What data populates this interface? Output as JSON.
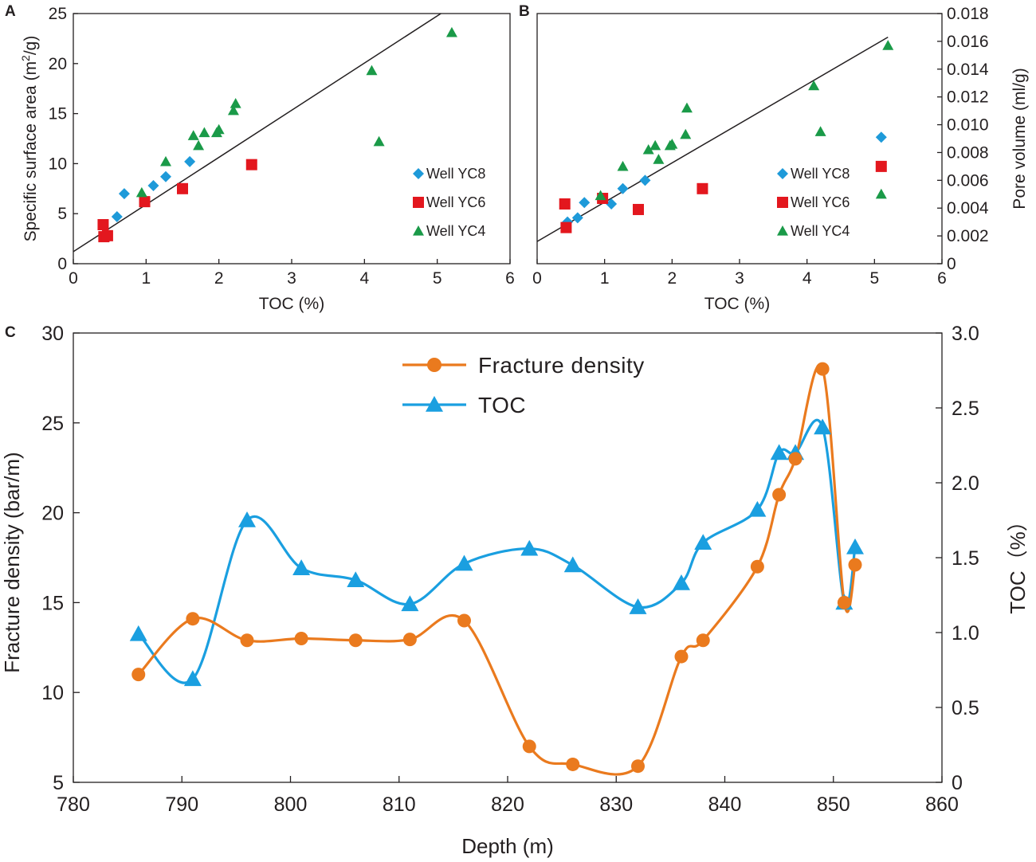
{
  "chart_data": [
    {
      "panel": "A",
      "type": "scatter",
      "xlabel": "TOC (%)",
      "ylabel_main": "Specific surface area (m",
      "ylabel_sup": "2",
      "ylabel_tail": "/g)",
      "xlim": [
        0,
        6
      ],
      "ylim": [
        0,
        25
      ],
      "xticks": [
        "0",
        "1",
        "2",
        "3",
        "4",
        "5",
        "6"
      ],
      "yticks": [
        "0",
        "5",
        "10",
        "15",
        "20",
        "25"
      ],
      "y_axis_side": "left",
      "legend_position": "right",
      "trendline": {
        "from": [
          0,
          1.2
        ],
        "to": [
          5.05,
          25
        ]
      },
      "series": [
        {
          "name": "Well YC8",
          "marker": "diamond",
          "color": "#1e9ad9",
          "x": [
            0.6,
            0.7,
            1.1,
            1.27,
            1.6
          ],
          "y": [
            4.7,
            7.0,
            7.8,
            8.7,
            10.2
          ]
        },
        {
          "name": "Well YC6",
          "marker": "square",
          "color": "#e3171e",
          "x": [
            0.41,
            0.42,
            0.47,
            0.98,
            1.5,
            2.45
          ],
          "y": [
            3.9,
            2.7,
            2.8,
            6.2,
            7.5,
            9.9
          ]
        },
        {
          "name": "Well YC4",
          "marker": "triangle",
          "color": "#1a9a48",
          "x": [
            0.94,
            1.27,
            1.65,
            1.72,
            1.8,
            1.97,
            2.0,
            2.2,
            2.23,
            4.1,
            4.2,
            5.2
          ],
          "y": [
            7.1,
            10.2,
            12.8,
            11.8,
            13.1,
            13.1,
            13.4,
            15.3,
            16.0,
            19.3,
            12.2,
            23.1
          ]
        }
      ]
    },
    {
      "panel": "B",
      "type": "scatter",
      "xlabel": "TOC (%)",
      "ylabel": "Pore volume (ml/g)",
      "xlim": [
        0,
        6
      ],
      "ylim": [
        0,
        0.018
      ],
      "xticks": [
        "0",
        "1",
        "2",
        "3",
        "4",
        "5",
        "6"
      ],
      "yticks": [
        "0",
        "0.002",
        "0.004",
        "0.006",
        "0.008",
        "0.010",
        "0.012",
        "0.014",
        "0.016",
        "0.018"
      ],
      "y_axis_side": "right",
      "legend_position": "right",
      "trendline": {
        "from": [
          0,
          0.0016
        ],
        "to": [
          5.2,
          0.0163
        ]
      },
      "series": [
        {
          "name": "Well YC8",
          "marker": "diamond",
          "color": "#1e9ad9",
          "x": [
            0.45,
            0.6,
            0.7,
            1.1,
            1.27,
            1.6,
            5.1
          ],
          "y": [
            0.003,
            0.0033,
            0.0044,
            0.0043,
            0.0054,
            0.006,
            0.0091
          ]
        },
        {
          "name": "Well YC6",
          "marker": "square",
          "color": "#e3171e",
          "x": [
            0.41,
            0.43,
            0.97,
            1.5,
            2.45,
            5.1
          ],
          "y": [
            0.0043,
            0.0026,
            0.0047,
            0.0039,
            0.0054,
            0.007
          ]
        },
        {
          "name": "Well YC4",
          "marker": "triangle",
          "color": "#1a9a48",
          "x": [
            0.94,
            1.27,
            1.65,
            1.75,
            1.8,
            1.97,
            2.0,
            2.2,
            2.22,
            4.1,
            4.2,
            5.1,
            5.2
          ],
          "y": [
            0.0049,
            0.007,
            0.0082,
            0.0085,
            0.0075,
            0.0085,
            0.0086,
            0.0093,
            0.0112,
            0.0128,
            0.0095,
            0.005,
            0.0157
          ]
        }
      ]
    },
    {
      "panel": "C",
      "type": "line",
      "xlabel": "Depth (m)",
      "ylabel_left": "Fracture density (bar/m)",
      "ylabel_right": "TOC（%）",
      "xlim": [
        780,
        860
      ],
      "ylim_left": [
        5,
        30
      ],
      "ylim_right": [
        0,
        3.0
      ],
      "xticks": [
        "780",
        "790",
        "800",
        "810",
        "820",
        "830",
        "840",
        "850",
        "860"
      ],
      "yticks_left": [
        "5",
        "10",
        "15",
        "20",
        "25",
        "30"
      ],
      "yticks_right": [
        "0",
        "0.5",
        "1.0",
        "1.5",
        "2.0",
        "2.5",
        "3.0"
      ],
      "legend_position": "top-center",
      "series": [
        {
          "name": "Fracture density",
          "axis": "left",
          "marker": "circle",
          "color": "#ea7a1e",
          "x": [
            786,
            791,
            796,
            801,
            806,
            811,
            816,
            822,
            826,
            832,
            836,
            838,
            843,
            845,
            846.5,
            849,
            851,
            852
          ],
          "y": [
            11.0,
            14.1,
            12.9,
            13.0,
            12.9,
            12.95,
            14.0,
            7.0,
            6.0,
            5.9,
            12.0,
            12.9,
            17.0,
            21.0,
            23.0,
            28.0,
            15.0,
            17.1
          ]
        },
        {
          "name": "TOC",
          "axis": "right",
          "marker": "triangle",
          "color": "#1a9fe0",
          "x": [
            786,
            791,
            796,
            801,
            806,
            811,
            816,
            822,
            826,
            832,
            836,
            838,
            843,
            845,
            846.5,
            849,
            851,
            852
          ],
          "y": [
            0.99,
            0.69,
            1.75,
            1.43,
            1.35,
            1.19,
            1.46,
            1.56,
            1.45,
            1.17,
            1.33,
            1.6,
            1.82,
            2.2,
            2.2,
            2.37,
            1.2,
            1.57
          ]
        }
      ]
    }
  ]
}
